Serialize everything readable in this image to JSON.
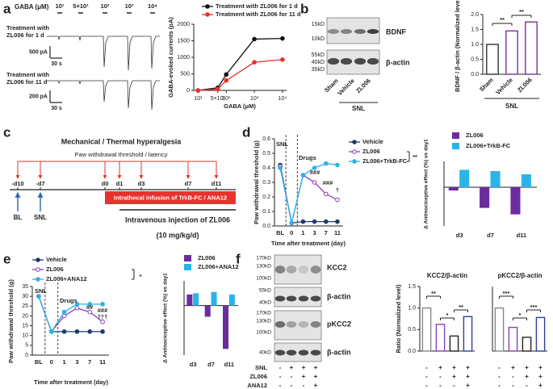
{
  "figure": {
    "panel_labels": [
      "a",
      "b",
      "c",
      "d",
      "e",
      "f"
    ],
    "a": {
      "stim_label": "GABA (μM)",
      "concentrations": [
        "10¹",
        "5×10¹",
        "10²",
        "10³",
        "10⁴"
      ],
      "trace_labels": [
        "Treatment with ZL006 for 1 d",
        "Treatment with ZL006 for 11 d"
      ],
      "scale_bars": [
        [
          "500 pA",
          "30 s"
        ],
        [
          "200 pA",
          "30 s"
        ]
      ]
    },
    "b": {
      "blots": [
        {
          "name": "BDNF",
          "markers": [
            "15kD",
            "10kD"
          ]
        },
        {
          "name": "β-actin",
          "markers": [
            "55kD",
            "40kD",
            "35kD"
          ]
        }
      ],
      "lanes": [
        "Sham",
        "Vehicle",
        "ZL006"
      ],
      "group": "SNL"
    },
    "c": {
      "title": "Mechanical / Thermal hyperalgesia",
      "subtitle": "Paw withdrawal threshold / latency",
      "days": [
        "-d10",
        "-d7",
        "d0",
        "d1",
        "d3",
        "d7",
        "d11"
      ],
      "events": [
        "BL",
        "SNL"
      ],
      "infusion": "Intrathecal infusion of TrkB-FC / ANA12",
      "injection": "Intravenous injection of ZL006",
      "dose": "(10 mg/kg/d)"
    },
    "f": {
      "blots": [
        {
          "name": "KCC2",
          "markers": [
            "170kD",
            "130kD",
            "100kD"
          ]
        },
        {
          "name": "β-actin",
          "markers": [
            "55kD",
            "40kD"
          ]
        },
        {
          "name": "pKCC2",
          "markers": [
            "170kD",
            "130kD",
            "100kD"
          ]
        },
        {
          "name": "β-actin",
          "markers": [
            "40kD"
          ]
        }
      ],
      "table": [
        {
          "label": "SNL",
          "signs": [
            "-",
            "+",
            "+",
            "+"
          ]
        },
        {
          "label": "ZL006",
          "signs": [
            "-",
            "-",
            "+",
            "+"
          ]
        },
        {
          "label": "ANA12",
          "signs": [
            "-",
            "-",
            "-",
            "+"
          ]
        }
      ]
    }
  },
  "chart_data": [
    {
      "type": "line",
      "xscale": "log",
      "x": [
        10,
        50,
        100,
        1000,
        10000
      ],
      "xlim": [
        7,
        14000
      ],
      "xticks": [
        {
          "value": 10,
          "label": "10¹"
        },
        {
          "value": 50,
          "label": "5×10¹"
        },
        {
          "value": 100,
          "label": "10²"
        },
        {
          "value": 1000,
          "label": "10³"
        },
        {
          "value": 10000,
          "label": "10⁴"
        }
      ],
      "ylim": [
        0,
        2000
      ],
      "yticks": [
        0,
        500,
        1000,
        1500,
        2000
      ],
      "xlabel": "GABA (μM)",
      "ylabel": "GABA-evoked currents (pA)",
      "legend": "top",
      "series": [
        {
          "name": "Treatment with ZL006 for 1 d",
          "color": "#111111",
          "marker": "filled",
          "values": [
            0,
            80,
            480,
            1550,
            1570
          ]
        },
        {
          "name": "Treatment with ZL006 for 11 d",
          "color": "#e8322e",
          "marker": "filled",
          "values": [
            0,
            40,
            300,
            850,
            930
          ]
        }
      ]
    },
    {
      "type": "bar",
      "categories": [
        "Sham",
        "Vehicle",
        "ZL006"
      ],
      "values": [
        1.0,
        1.45,
        1.75
      ],
      "colors": [
        "#333333",
        "#7b2fa3",
        "#7b2fa3"
      ],
      "fill": "white",
      "ylim": [
        0,
        2
      ],
      "yticks": [
        {
          "value": 0,
          "label": "0.0"
        },
        0.5,
        {
          "value": 1,
          "label": "1.0"
        },
        1.5,
        {
          "value": 2,
          "label": "2.0"
        }
      ],
      "ylabel": "BDNF / β-actin (Normalized level)",
      "group": "SNL",
      "annotations": [
        "**",
        "**"
      ]
    },
    {
      "type": "line",
      "categories": [
        "BL",
        "0",
        "1",
        "3",
        "7",
        "11"
      ],
      "ylim": [
        0,
        0.6
      ],
      "yticks": [
        {
          "value": 0,
          "label": "0.0"
        },
        0.1,
        0.2,
        0.3,
        0.4,
        0.5,
        0.6
      ],
      "xlabel": "Time after treatment (day)",
      "ylabel": "Paw withdrawal threshold (g)",
      "legend": "right",
      "series": [
        {
          "name": "Vehicle",
          "color": "#1f3a6e",
          "marker": "filled",
          "values": [
            0.42,
            0.02,
            0.03,
            0.03,
            0.03,
            0.03
          ]
        },
        {
          "name": "ZL006",
          "color": "#8a3fb5",
          "marker": "open",
          "values": [
            0.41,
            0.02,
            0.35,
            0.3,
            0.22,
            0.18
          ]
        },
        {
          "name": "ZL006+TrkB-FC",
          "color": "#2bb3e6",
          "marker": "filled",
          "values": [
            0.4,
            0.02,
            0.35,
            0.4,
            0.43,
            0.42
          ]
        }
      ],
      "annotations": [
        "SNL",
        "Drugs",
        "**",
        "###",
        "###",
        "†"
      ]
    },
    {
      "type": "bar",
      "categories": [
        "d3",
        "d7",
        "d11"
      ],
      "ylim": [
        -0.6,
        0.4
      ],
      "ylabel": "Δ Antinociceptive effect (%) vs day1",
      "legend": "top",
      "series": [
        {
          "name": "ZL006",
          "color": "#6a2c9e",
          "values": [
            -0.05,
            -0.32,
            -0.42
          ]
        },
        {
          "name": "ZL006+TrkB-FC",
          "color": "#2bb3e6",
          "values": [
            0.27,
            0.25,
            0.2
          ]
        }
      ]
    },
    {
      "type": "line",
      "categories": [
        "BL",
        "0",
        "1",
        "3",
        "7",
        "11"
      ],
      "ylim": [
        0,
        35
      ],
      "yticks": [
        0,
        5,
        10,
        15,
        20,
        25,
        30,
        35
      ],
      "xlabel": "Time after treatment (day)",
      "ylabel": "Paw withdrawal threshold (g)",
      "legend": "top",
      "series": [
        {
          "name": "Vehicle",
          "color": "#1f3a6e",
          "marker": "filled",
          "values": [
            30,
            12,
            12,
            12,
            12,
            12
          ]
        },
        {
          "name": "ZL006",
          "color": "#8a3fb5",
          "marker": "open",
          "values": [
            30,
            12,
            20,
            24,
            22,
            17
          ]
        },
        {
          "name": "ZL006+ANA12",
          "color": "#2bb3e6",
          "marker": "filled",
          "values": [
            30,
            12,
            22,
            26,
            26,
            26
          ]
        }
      ],
      "annotations": [
        "SNL",
        "Drugs",
        "*",
        "##",
        "###",
        "†††"
      ]
    },
    {
      "type": "bar",
      "categories": [
        "d3",
        "d7",
        "d11"
      ],
      "ylim": [
        -0.8,
        0.4
      ],
      "ylabel": "Δ Antinociceptive effect (%) vs day1",
      "legend": "top",
      "series": [
        {
          "name": "ZL006",
          "color": "#6a2c9e",
          "values": [
            0.18,
            -0.18,
            -0.7
          ]
        },
        {
          "name": "ZL006+ANA12",
          "color": "#2bb3e6",
          "values": [
            0.2,
            0.22,
            0.18
          ]
        }
      ]
    },
    {
      "type": "bar",
      "title": "KCC2/β-actin",
      "values": [
        1.0,
        0.62,
        0.35,
        0.8
      ],
      "colors": [
        "#888888",
        "#8a3fb5",
        "#222222",
        "#2d3f9e"
      ],
      "fill": "white",
      "ylim": [
        0,
        1.5
      ],
      "yticks": [
        {
          "value": 0,
          "label": "0.0"
        },
        0.5,
        {
          "value": 1,
          "label": "1.0"
        },
        1.5
      ],
      "ylabel": "Ratio (Normalized level)",
      "annotations": [
        "**",
        "*",
        "**"
      ]
    },
    {
      "type": "bar",
      "title": "pKCC2/β-actin",
      "values": [
        1.0,
        0.55,
        0.32,
        0.78
      ],
      "colors": [
        "#888888",
        "#8a3fb5",
        "#222222",
        "#2d3f9e"
      ],
      "fill": "white",
      "ylim": [
        0,
        1.5
      ],
      "annotations": [
        "***",
        "*",
        "***"
      ]
    }
  ]
}
